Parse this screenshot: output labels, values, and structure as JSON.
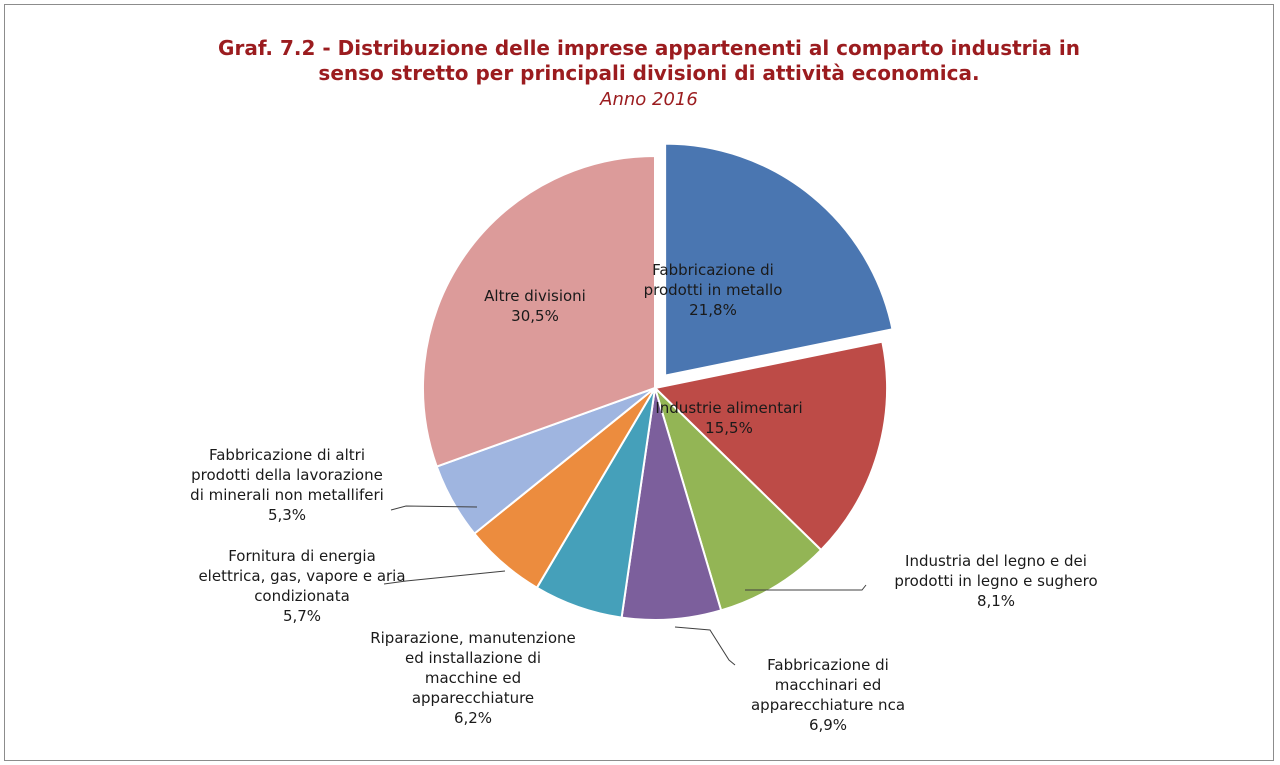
{
  "chart_data": {
    "type": "pie",
    "title": "Graf. 7.2 - Distribuzione delle imprese appartenenti al comparto industria in senso stretto per principali divisioni di attività economica.",
    "title_lines": [
      "Graf. 7.2 - Distribuzione delle imprese appartenenti al comparto industria in",
      "senso stretto per principali divisioni di attività economica."
    ],
    "subtitle": "Anno 2016",
    "start_angle_deg": 0,
    "direction": "clockwise",
    "slices": [
      {
        "name": "Fabbricazione di prodotti in metallo",
        "label_lines": [
          "Fabbricazione di",
          "prodotti in metallo"
        ],
        "value": 21.8,
        "value_label": "21,8%",
        "color": "#4a76b1",
        "exploded": true
      },
      {
        "name": "Industrie alimentari",
        "label_lines": [
          "Industrie alimentari"
        ],
        "value": 15.5,
        "value_label": "15,5%",
        "color": "#bd4b47",
        "exploded": false
      },
      {
        "name": "Industria del legno e dei prodotti in legno e sughero",
        "label_lines": [
          "Industria del legno e dei",
          "prodotti in legno e sughero"
        ],
        "value": 8.1,
        "value_label": "8,1%",
        "color": "#93b555",
        "exploded": false
      },
      {
        "name": "Fabbricazione di macchinari ed apparecchiature nca",
        "label_lines": [
          "Fabbricazione di",
          "macchinari ed",
          "apparecchiature nca"
        ],
        "value": 6.9,
        "value_label": "6,9%",
        "color": "#7c5f9c",
        "exploded": false
      },
      {
        "name": "Riparazione, manutenzione ed installazione di macchine ed apparecchiature",
        "label_lines": [
          "Riparazione, manutenzione",
          "ed installazione di",
          "macchine ed",
          "apparecchiature"
        ],
        "value": 6.2,
        "value_label": "6,2%",
        "color": "#45a0ba",
        "exploded": false
      },
      {
        "name": "Fornitura di energia elettrica, gas, vapore e aria condizionata",
        "label_lines": [
          "Fornitura di energia",
          "elettrica, gas, vapore e aria",
          "condizionata"
        ],
        "value": 5.7,
        "value_label": "5,7%",
        "color": "#ec8c3e",
        "exploded": false
      },
      {
        "name": "Fabbricazione di altri prodotti della lavorazione di minerali non metalliferi",
        "label_lines": [
          "Fabbricazione di altri",
          "prodotti della lavorazione",
          "di minerali non metalliferi"
        ],
        "value": 5.3,
        "value_label": "5,3%",
        "color": "#9fb5e0",
        "exploded": false
      },
      {
        "name": "Altre divisioni",
        "label_lines": [
          "Altre divisioni"
        ],
        "value": 30.5,
        "value_label": "30,5%",
        "color": "#dc9b9a",
        "exploded": false
      }
    ]
  }
}
